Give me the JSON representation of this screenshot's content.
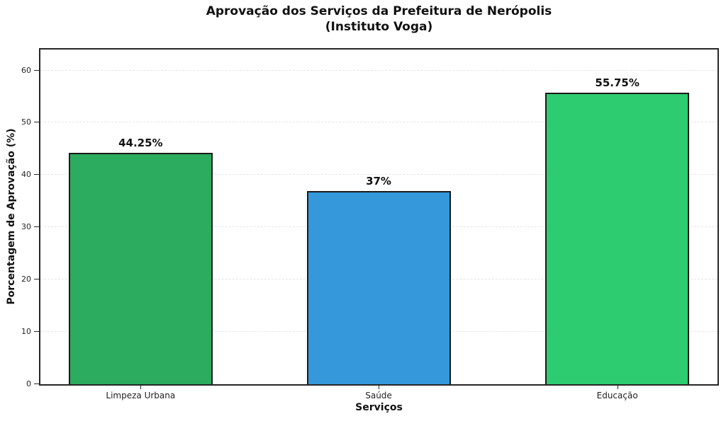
{
  "chart_data": {
    "type": "bar",
    "title": "Aprovação dos Serviços da Prefeitura de Nerópolis",
    "subtitle": "(Instituto Voga)",
    "xlabel": "Serviços",
    "ylabel": "Porcentagem de Aprovação (%)",
    "categories": [
      "Limpeza Urbana",
      "Saúde",
      "Educação"
    ],
    "values": [
      44.25,
      37,
      55.75
    ],
    "value_labels": [
      "44.25%",
      "37%",
      "55.75%"
    ],
    "bar_colors": [
      "#2bac5e",
      "#3498db",
      "#2ecc71"
    ],
    "bar_edge_color": "#1a1a1a",
    "ylim": [
      0,
      64
    ],
    "yticks": [
      0,
      10,
      20,
      30,
      40,
      50,
      60
    ],
    "grid": true,
    "grid_style": "dashed",
    "grid_color": "#e4e4e4",
    "legend": false
  }
}
